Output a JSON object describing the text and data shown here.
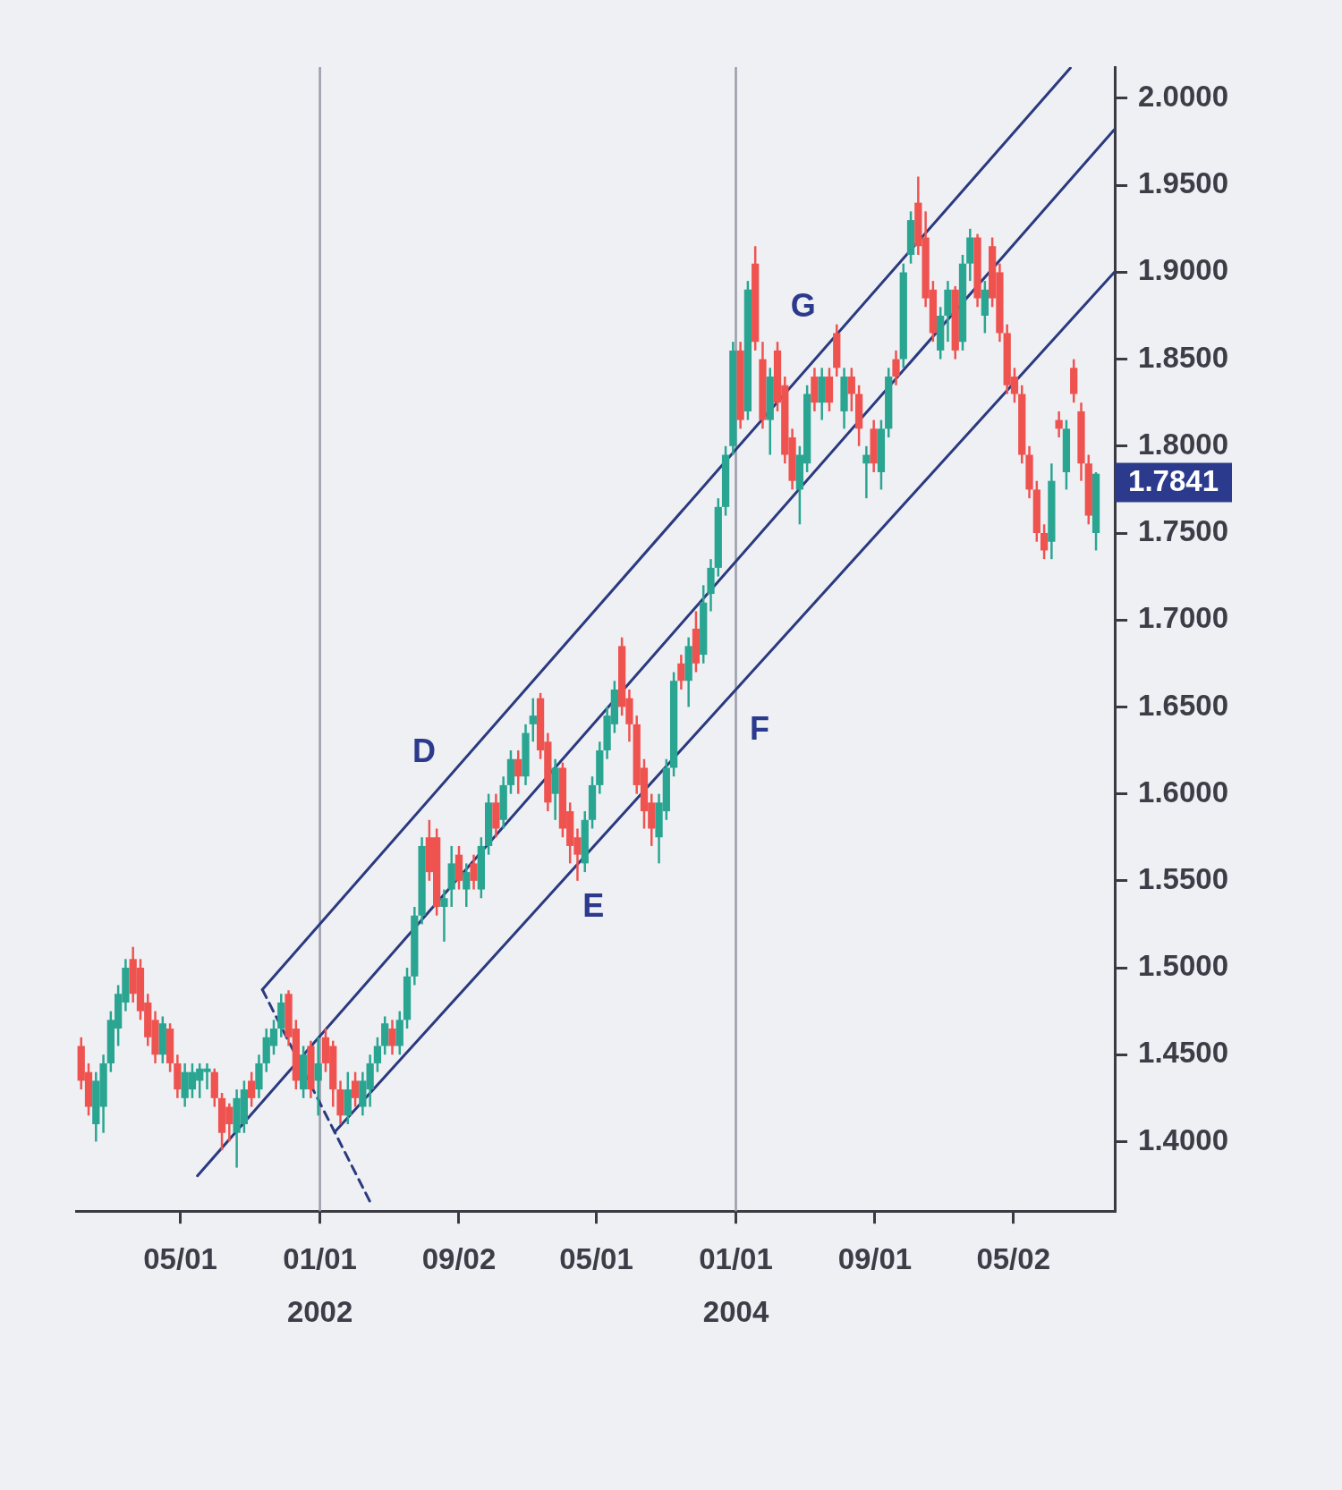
{
  "chart_data": {
    "type": "candlestick",
    "x": [
      "2000-11-08",
      "2000-11-21",
      "2000-12-04",
      "2000-12-17",
      "2000-12-30",
      "2001-01-12",
      "2001-01-25",
      "2001-02-07",
      "2001-02-20",
      "2001-03-05",
      "2001-03-18",
      "2001-03-31",
      "2001-04-13",
      "2001-04-26",
      "2001-05-09",
      "2001-05-22",
      "2001-06-04",
      "2001-06-17",
      "2001-06-30",
      "2001-07-13",
      "2001-07-26",
      "2001-08-08",
      "2001-08-21",
      "2001-09-03",
      "2001-09-16",
      "2001-09-29",
      "2001-10-12",
      "2001-10-25",
      "2001-11-07",
      "2001-11-20",
      "2001-12-03",
      "2001-12-16",
      "2001-12-29",
      "2002-01-11",
      "2002-01-24",
      "2002-02-06",
      "2002-02-19",
      "2002-03-04",
      "2002-03-17",
      "2002-03-30",
      "2002-04-12",
      "2002-04-25",
      "2002-05-08",
      "2002-05-21",
      "2002-06-03",
      "2002-06-16",
      "2002-06-29",
      "2002-07-12",
      "2002-07-25",
      "2002-08-07",
      "2002-08-20",
      "2002-09-02",
      "2002-09-15",
      "2002-09-28",
      "2002-10-11",
      "2002-10-24",
      "2002-11-06",
      "2002-11-19",
      "2002-12-02",
      "2002-12-15",
      "2002-12-28",
      "2003-01-10",
      "2003-01-23",
      "2003-02-05",
      "2003-02-18",
      "2003-03-03",
      "2003-03-16",
      "2003-03-29",
      "2003-04-11",
      "2003-04-24",
      "2003-05-07",
      "2003-05-20",
      "2003-06-02",
      "2003-06-15",
      "2003-06-28",
      "2003-07-11",
      "2003-07-24",
      "2003-08-06",
      "2003-08-19",
      "2003-09-01",
      "2003-09-14",
      "2003-09-27",
      "2003-10-10",
      "2003-10-23",
      "2003-11-05",
      "2003-11-18",
      "2003-12-01",
      "2003-12-14",
      "2003-12-27",
      "2004-01-09",
      "2004-01-22",
      "2004-02-04",
      "2004-02-17",
      "2004-03-01",
      "2004-03-14",
      "2004-03-27",
      "2004-04-09",
      "2004-04-22",
      "2004-05-05",
      "2004-05-18",
      "2004-05-31",
      "2004-06-13",
      "2004-06-26",
      "2004-07-09",
      "2004-07-22",
      "2004-08-04",
      "2004-08-17",
      "2004-08-30",
      "2004-09-12",
      "2004-09-25",
      "2004-10-08",
      "2004-10-21",
      "2004-11-03",
      "2004-11-16",
      "2004-11-29",
      "2004-12-12",
      "2004-12-25",
      "2005-01-07",
      "2005-01-20",
      "2005-02-02",
      "2005-02-15",
      "2005-02-28",
      "2005-03-13",
      "2005-03-26",
      "2005-04-08",
      "2005-04-21",
      "2005-05-04",
      "2005-05-17",
      "2005-05-30",
      "2005-06-12",
      "2005-06-25",
      "2005-07-08",
      "2005-07-21",
      "2005-08-03",
      "2005-08-16",
      "2005-08-29",
      "2005-09-11",
      "2005-09-24"
    ],
    "ohlc": [
      [
        1.455,
        1.46,
        1.43,
        1.435
      ],
      [
        1.44,
        1.445,
        1.415,
        1.42
      ],
      [
        1.41,
        1.44,
        1.4,
        1.435
      ],
      [
        1.42,
        1.45,
        1.405,
        1.445
      ],
      [
        1.445,
        1.475,
        1.44,
        1.47
      ],
      [
        1.465,
        1.49,
        1.455,
        1.485
      ],
      [
        1.48,
        1.505,
        1.475,
        1.5
      ],
      [
        1.505,
        1.512,
        1.48,
        1.485
      ],
      [
        1.5,
        1.505,
        1.47,
        1.475
      ],
      [
        1.48,
        1.485,
        1.455,
        1.46
      ],
      [
        1.47,
        1.475,
        1.445,
        1.45
      ],
      [
        1.45,
        1.472,
        1.445,
        1.468
      ],
      [
        1.465,
        1.468,
        1.44,
        1.445
      ],
      [
        1.445,
        1.45,
        1.425,
        1.43
      ],
      [
        1.425,
        1.445,
        1.42,
        1.44
      ],
      [
        1.43,
        1.445,
        1.425,
        1.44
      ],
      [
        1.435,
        1.445,
        1.425,
        1.442
      ],
      [
        1.44,
        1.445,
        1.43,
        1.442
      ],
      [
        1.44,
        1.442,
        1.42,
        1.425
      ],
      [
        1.425,
        1.428,
        1.395,
        1.405
      ],
      [
        1.42,
        1.422,
        1.4,
        1.41
      ],
      [
        1.405,
        1.43,
        1.385,
        1.425
      ],
      [
        1.41,
        1.435,
        1.405,
        1.43
      ],
      [
        1.435,
        1.44,
        1.42,
        1.425
      ],
      [
        1.43,
        1.45,
        1.425,
        1.445
      ],
      [
        1.445,
        1.465,
        1.44,
        1.46
      ],
      [
        1.455,
        1.47,
        1.45,
        1.465
      ],
      [
        1.465,
        1.485,
        1.46,
        1.48
      ],
      [
        1.485,
        1.487,
        1.455,
        1.46
      ],
      [
        1.465,
        1.47,
        1.43,
        1.435
      ],
      [
        1.43,
        1.455,
        1.425,
        1.45
      ],
      [
        1.455,
        1.458,
        1.425,
        1.43
      ],
      [
        1.435,
        1.46,
        1.415,
        1.445
      ],
      [
        1.46,
        1.465,
        1.44,
        1.445
      ],
      [
        1.455,
        1.458,
        1.42,
        1.43
      ],
      [
        1.43,
        1.435,
        1.41,
        1.415
      ],
      [
        1.415,
        1.44,
        1.41,
        1.43
      ],
      [
        1.435,
        1.44,
        1.42,
        1.425
      ],
      [
        1.42,
        1.44,
        1.415,
        1.435
      ],
      [
        1.43,
        1.45,
        1.42,
        1.445
      ],
      [
        1.445,
        1.46,
        1.44,
        1.455
      ],
      [
        1.455,
        1.472,
        1.45,
        1.468
      ],
      [
        1.465,
        1.47,
        1.45,
        1.455
      ],
      [
        1.455,
        1.475,
        1.45,
        1.47
      ],
      [
        1.47,
        1.5,
        1.465,
        1.495
      ],
      [
        1.495,
        1.535,
        1.49,
        1.53
      ],
      [
        1.53,
        1.575,
        1.525,
        1.57
      ],
      [
        1.575,
        1.585,
        1.55,
        1.555
      ],
      [
        1.575,
        1.58,
        1.53,
        1.535
      ],
      [
        1.535,
        1.545,
        1.515,
        1.54
      ],
      [
        1.545,
        1.57,
        1.535,
        1.56
      ],
      [
        1.565,
        1.57,
        1.545,
        1.55
      ],
      [
        1.545,
        1.56,
        1.535,
        1.555
      ],
      [
        1.56,
        1.565,
        1.545,
        1.55
      ],
      [
        1.545,
        1.575,
        1.54,
        1.57
      ],
      [
        1.57,
        1.6,
        1.565,
        1.595
      ],
      [
        1.595,
        1.6,
        1.575,
        1.58
      ],
      [
        1.585,
        1.61,
        1.58,
        1.605
      ],
      [
        1.605,
        1.625,
        1.6,
        1.62
      ],
      [
        1.62,
        1.625,
        1.6,
        1.61
      ],
      [
        1.61,
        1.64,
        1.605,
        1.635
      ],
      [
        1.64,
        1.655,
        1.63,
        1.645
      ],
      [
        1.655,
        1.658,
        1.62,
        1.625
      ],
      [
        1.63,
        1.635,
        1.59,
        1.595
      ],
      [
        1.6,
        1.62,
        1.585,
        1.615
      ],
      [
        1.615,
        1.618,
        1.575,
        1.58
      ],
      [
        1.59,
        1.595,
        1.56,
        1.57
      ],
      [
        1.575,
        1.58,
        1.55,
        1.565
      ],
      [
        1.56,
        1.59,
        1.555,
        1.585
      ],
      [
        1.585,
        1.61,
        1.58,
        1.605
      ],
      [
        1.605,
        1.63,
        1.6,
        1.625
      ],
      [
        1.625,
        1.65,
        1.62,
        1.645
      ],
      [
        1.64,
        1.665,
        1.635,
        1.66
      ],
      [
        1.685,
        1.69,
        1.645,
        1.65
      ],
      [
        1.655,
        1.66,
        1.63,
        1.64
      ],
      [
        1.64,
        1.645,
        1.6,
        1.605
      ],
      [
        1.615,
        1.62,
        1.58,
        1.59
      ],
      [
        1.595,
        1.6,
        1.57,
        1.58
      ],
      [
        1.575,
        1.6,
        1.56,
        1.595
      ],
      [
        1.59,
        1.62,
        1.585,
        1.615
      ],
      [
        1.615,
        1.67,
        1.61,
        1.665
      ],
      [
        1.675,
        1.68,
        1.66,
        1.665
      ],
      [
        1.665,
        1.69,
        1.65,
        1.685
      ],
      [
        1.695,
        1.705,
        1.67,
        1.675
      ],
      [
        1.68,
        1.72,
        1.675,
        1.71
      ],
      [
        1.715,
        1.735,
        1.705,
        1.73
      ],
      [
        1.73,
        1.77,
        1.725,
        1.765
      ],
      [
        1.765,
        1.8,
        1.76,
        1.795
      ],
      [
        1.8,
        1.86,
        1.795,
        1.855
      ],
      [
        1.855,
        1.86,
        1.81,
        1.815
      ],
      [
        1.82,
        1.895,
        1.815,
        1.89
      ],
      [
        1.905,
        1.915,
        1.855,
        1.86
      ],
      [
        1.85,
        1.86,
        1.81,
        1.815
      ],
      [
        1.815,
        1.845,
        1.795,
        1.84
      ],
      [
        1.855,
        1.86,
        1.82,
        1.825
      ],
      [
        1.835,
        1.84,
        1.79,
        1.795
      ],
      [
        1.805,
        1.81,
        1.775,
        1.78
      ],
      [
        1.775,
        1.8,
        1.755,
        1.795
      ],
      [
        1.79,
        1.835,
        1.785,
        1.83
      ],
      [
        1.84,
        1.845,
        1.82,
        1.825
      ],
      [
        1.825,
        1.845,
        1.815,
        1.84
      ],
      [
        1.84,
        1.845,
        1.82,
        1.825
      ],
      [
        1.865,
        1.87,
        1.84,
        1.845
      ],
      [
        1.82,
        1.845,
        1.81,
        1.84
      ],
      [
        1.84,
        1.845,
        1.82,
        1.83
      ],
      [
        1.83,
        1.835,
        1.8,
        1.81
      ],
      [
        1.79,
        1.8,
        1.77,
        1.795
      ],
      [
        1.81,
        1.815,
        1.785,
        1.79
      ],
      [
        1.785,
        1.815,
        1.775,
        1.81
      ],
      [
        1.81,
        1.845,
        1.805,
        1.84
      ],
      [
        1.85,
        1.855,
        1.835,
        1.84
      ],
      [
        1.85,
        1.905,
        1.845,
        1.9
      ],
      [
        1.91,
        1.935,
        1.905,
        1.93
      ],
      [
        1.94,
        1.955,
        1.91,
        1.915
      ],
      [
        1.92,
        1.935,
        1.88,
        1.885
      ],
      [
        1.89,
        1.895,
        1.86,
        1.865
      ],
      [
        1.855,
        1.88,
        1.85,
        1.875
      ],
      [
        1.875,
        1.895,
        1.86,
        1.89
      ],
      [
        1.89,
        1.892,
        1.85,
        1.855
      ],
      [
        1.86,
        1.91,
        1.855,
        1.905
      ],
      [
        1.905,
        1.925,
        1.895,
        1.92
      ],
      [
        1.92,
        1.922,
        1.88,
        1.885
      ],
      [
        1.875,
        1.895,
        1.865,
        1.89
      ],
      [
        1.915,
        1.92,
        1.88,
        1.885
      ],
      [
        1.9,
        1.905,
        1.86,
        1.865
      ],
      [
        1.865,
        1.87,
        1.83,
        1.835
      ],
      [
        1.84,
        1.845,
        1.825,
        1.83
      ],
      [
        1.83,
        1.835,
        1.79,
        1.795
      ],
      [
        1.795,
        1.8,
        1.77,
        1.775
      ],
      [
        1.775,
        1.78,
        1.745,
        1.75
      ],
      [
        1.75,
        1.755,
        1.735,
        1.74
      ],
      [
        1.745,
        1.79,
        1.735,
        1.78
      ],
      [
        1.815,
        1.82,
        1.805,
        1.81
      ],
      [
        1.785,
        1.815,
        1.775,
        1.81
      ],
      [
        1.845,
        1.85,
        1.825,
        1.83
      ],
      [
        1.82,
        1.825,
        1.78,
        1.79
      ],
      [
        1.79,
        1.795,
        1.755,
        1.76
      ],
      [
        1.75,
        1.785,
        1.74,
        1.7841
      ]
    ],
    "colors": [
      "#ef5350",
      "#ef5350",
      "#2aa592",
      "#2aa592",
      "#2aa592",
      "#2aa592",
      "#2aa592",
      "#ef5350",
      "#ef5350",
      "#ef5350",
      "#ef5350",
      "#2aa592",
      "#ef5350",
      "#ef5350",
      "#2aa592",
      "#2aa592",
      "#2aa592",
      "#2aa592",
      "#ef5350",
      "#ef5350",
      "#ef5350",
      "#2aa592",
      "#2aa592",
      "#ef5350",
      "#2aa592",
      "#2aa592",
      "#2aa592",
      "#2aa592",
      "#ef5350",
      "#ef5350",
      "#2aa592",
      "#ef5350",
      "#2aa592",
      "#ef5350",
      "#ef5350",
      "#ef5350",
      "#2aa592",
      "#ef5350",
      "#2aa592",
      "#2aa592",
      "#2aa592",
      "#2aa592",
      "#ef5350",
      "#2aa592",
      "#2aa592",
      "#2aa592",
      "#2aa592",
      "#ef5350",
      "#ef5350",
      "#2aa592",
      "#2aa592",
      "#ef5350",
      "#2aa592",
      "#ef5350",
      "#2aa592",
      "#2aa592",
      "#ef5350",
      "#2aa592",
      "#2aa592",
      "#ef5350",
      "#2aa592",
      "#2aa592",
      "#ef5350",
      "#ef5350",
      "#2aa592",
      "#ef5350",
      "#ef5350",
      "#ef5350",
      "#2aa592",
      "#2aa592",
      "#2aa592",
      "#2aa592",
      "#2aa592",
      "#ef5350",
      "#ef5350",
      "#ef5350",
      "#ef5350",
      "#ef5350",
      "#2aa592",
      "#2aa592",
      "#2aa592",
      "#ef5350",
      "#2aa592",
      "#ef5350",
      "#2aa592",
      "#2aa592",
      "#2aa592",
      "#2aa592",
      "#2aa592",
      "#ef5350",
      "#2aa592",
      "#ef5350",
      "#ef5350",
      "#2aa592",
      "#ef5350",
      "#ef5350",
      "#ef5350",
      "#2aa592",
      "#2aa592",
      "#ef5350",
      "#2aa592",
      "#ef5350",
      "#ef5350",
      "#2aa592",
      "#ef5350",
      "#ef5350",
      "#2aa592",
      "#ef5350",
      "#2aa592",
      "#2aa592",
      "#ef5350",
      "#2aa592",
      "#2aa592",
      "#ef5350",
      "#ef5350",
      "#ef5350",
      "#2aa592",
      "#2aa592",
      "#ef5350",
      "#2aa592",
      "#2aa592",
      "#ef5350",
      "#2aa592",
      "#ef5350",
      "#ef5350",
      "#ef5350",
      "#ef5350",
      "#ef5350",
      "#ef5350",
      "#ef5350",
      "#ef5350",
      "#2aa592",
      "#ef5350",
      "#2aa592",
      "#ef5350",
      "#ef5350",
      "#ef5350",
      "#2aa592"
    ],
    "series": [
      {
        "type": "line",
        "color": "#2b3a7f",
        "x": [
          "2001-09-22",
          "2005-08-10"
        ],
        "values": [
          1.4874,
          2.0175
        ]
      },
      {
        "type": "line",
        "color": "#2b3a7f",
        "x": [
          "2001-05-31",
          "2005-10-26"
        ],
        "values": [
          1.3803,
          1.982
        ]
      },
      {
        "type": "line",
        "color": "#2b3a7f",
        "x": [
          "2002-01-27",
          "2005-10-26"
        ],
        "values": [
          1.4055,
          1.9
        ]
      },
      {
        "type": "line",
        "color": "#2b3a7f",
        "line_style": "dashed",
        "x": [
          "2001-09-22",
          "2002-04-03"
        ],
        "values": [
          1.4874,
          1.3628
        ]
      }
    ],
    "xlim": [
      "2000-10-30",
      "2005-10-27"
    ],
    "xticks": [
      {
        "value": "2001-05-01",
        "label": "05/01"
      },
      {
        "value": "2002-01-01",
        "label": "01/01\n2002"
      },
      {
        "value": "2002-09-02",
        "label": "09/02"
      },
      {
        "value": "2003-05-01",
        "label": "05/01"
      },
      {
        "value": "2004-01-01",
        "label": "01/01\n2004"
      },
      {
        "value": "2004-09-01",
        "label": "09/01"
      },
      {
        "value": "2005-05-02",
        "label": "05/02"
      }
    ],
    "ylim": [
      1.36,
      2.018
    ],
    "yticks": [
      {
        "value": 1.4,
        "label": "1.4000"
      },
      {
        "value": 1.45,
        "label": "1.4500"
      },
      {
        "value": 1.5,
        "label": "1.5000"
      },
      {
        "value": 1.55,
        "label": "1.5500"
      },
      {
        "value": 1.6,
        "label": "1.6000"
      },
      {
        "value": 1.65,
        "label": "1.6500"
      },
      {
        "value": 1.7,
        "label": "1.7000"
      },
      {
        "value": 1.75,
        "label": "1.7500"
      },
      {
        "value": 1.8,
        "label": "1.8000"
      },
      {
        "value": 1.85,
        "label": "1.8500"
      },
      {
        "value": 1.9,
        "label": "1.9000"
      },
      {
        "value": 1.95,
        "label": "1.9500"
      },
      {
        "value": 2.0,
        "label": "2.0000"
      }
    ],
    "ref_lines": [
      {
        "axis": "x",
        "value": "2002-01-01",
        "color": "#9a9ca8"
      },
      {
        "axis": "x",
        "value": "2004-01-01",
        "color": "#9a9ca8"
      }
    ],
    "annotations": [
      "D",
      "E",
      "F",
      "G",
      "1.7841"
    ],
    "grid": false,
    "legend": false
  }
}
